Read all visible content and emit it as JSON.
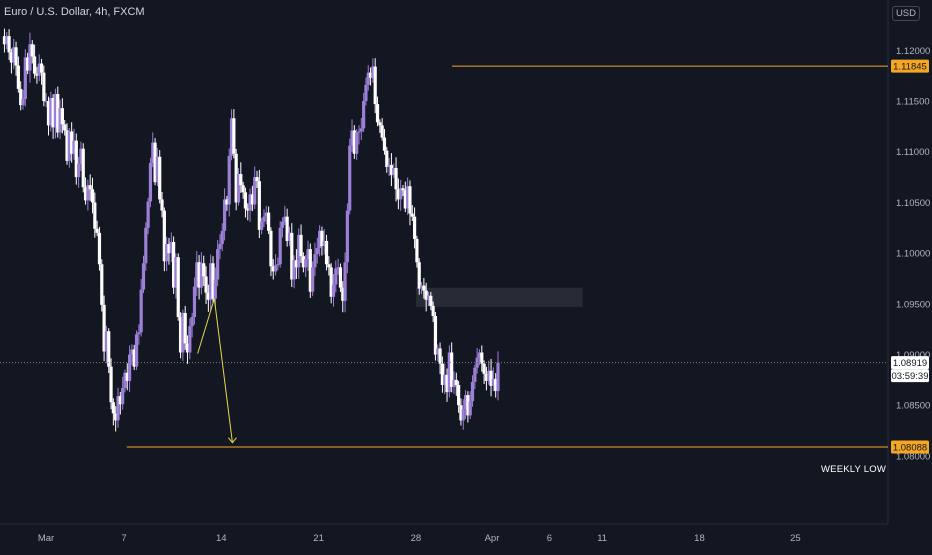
{
  "header": {
    "title": "Euro / U.S. Dollar, 4h, FXCM",
    "currency_button": "USD"
  },
  "annotations": {
    "weekly_low_label": "WEEKLY LOW"
  },
  "colors": {
    "background": "#131722",
    "bull_candle": "#9c7fd6",
    "bear_candle": "#ffffff",
    "level_line": "#f5a623",
    "projection_arrow": "#e6d94a",
    "zone": "#2a2e39",
    "price_line": "#787b86"
  },
  "chart_data": {
    "type": "candlestick",
    "title": "Euro / U.S. Dollar, 4h, FXCM",
    "x_ticks": [
      "Mar",
      "7",
      "14",
      "21",
      "28",
      "Apr",
      "6",
      "11",
      "18",
      "25"
    ],
    "y_ticks": [
      "1.12000",
      "1.11500",
      "1.11000",
      "1.10500",
      "1.10000",
      "1.09500",
      "1.09000",
      "1.08500",
      "1.08000"
    ],
    "ylim": [
      1.0795,
      1.1225
    ],
    "grid": false,
    "price_labels": [
      {
        "value": "1.11845",
        "kind": "level"
      },
      {
        "value": "1.08919",
        "kind": "last"
      },
      {
        "value": "03:59:39",
        "kind": "countdown"
      },
      {
        "value": "1.08088",
        "kind": "level"
      }
    ],
    "levels": [
      {
        "price": 1.11845,
        "from_day": 30.6
      },
      {
        "price": 1.08088,
        "from_day": 7.2,
        "label": "WEEKLY LOW"
      }
    ],
    "zone": {
      "from_day": 28.0,
      "to_day": 40.0,
      "low": 1.0947,
      "high": 1.0966
    },
    "projection": [
      [
        12.3,
        1.0901
      ],
      [
        13.5,
        1.0955
      ],
      [
        14.8,
        1.0813
      ]
    ],
    "close_series": {
      "start_day": -1.6,
      "step_days": 0.1667,
      "values": [
        1.1206,
        1.1214,
        1.1198,
        1.1188,
        1.1203,
        1.1185,
        1.1162,
        1.1146,
        1.1152,
        1.1193,
        1.118,
        1.1206,
        1.1194,
        1.1177,
        1.1175,
        1.1187,
        1.1178,
        1.115,
        1.115,
        1.1126,
        1.1153,
        1.1124,
        1.1157,
        1.1119,
        1.1143,
        1.1127,
        1.1121,
        1.1091,
        1.112,
        1.1098,
        1.1111,
        1.1075,
        1.1088,
        1.1103,
        1.1065,
        1.1052,
        1.1067,
        1.1063,
        1.105,
        1.1024,
        1.102,
        1.0989,
        1.0949,
        1.0903,
        1.0923,
        1.0888,
        1.0853,
        1.0842,
        1.0835,
        1.0859,
        1.0851,
        1.0867,
        1.0882,
        1.0874,
        1.09,
        1.0905,
        1.0888,
        1.092,
        1.0922,
        1.0964,
        1.099,
        1.1025,
        1.1051,
        1.1089,
        1.1109,
        1.107,
        1.1095,
        1.1053,
        1.1042,
        1.0992,
        1.1009,
        1.1,
        1.1011,
        1.0966,
        1.0996,
        1.0937,
        1.0902,
        1.0941,
        1.0911,
        1.0902,
        1.0928,
        1.0937,
        1.0967,
        1.0991,
        1.0966,
        1.099,
        1.0977,
        1.0961,
        1.0954,
        1.099,
        1.0955,
        1.0974,
        1.1004,
        1.1009,
        1.1022,
        1.1053,
        1.1048,
        1.1096,
        1.1133,
        1.1098,
        1.105,
        1.1078,
        1.1067,
        1.106,
        1.1044,
        1.1042,
        1.1058,
        1.1048,
        1.1075,
        1.1071,
        1.1023,
        1.1031,
        1.1036,
        1.104,
        1.1022,
        1.0987,
        1.0982,
        1.0988,
        1.0989,
        1.1025,
        1.1031,
        1.1036,
        1.1012,
        1.102,
        1.0974,
        1.0993,
        1.0986,
        1.1018,
        1.0997,
        1.0986,
        1.0994,
        1.1004,
        1.0962,
        1.0986,
        1.0999,
        1.1005,
        1.1022,
        1.1007,
        1.1012,
        1.0989,
        1.0986,
        1.0957,
        1.0969,
        1.0985,
        1.0986,
        1.0966,
        1.0953,
        1.0991,
        1.1042,
        1.1106,
        1.1121,
        1.1098,
        1.1119,
        1.112,
        1.1123,
        1.115,
        1.1166,
        1.1178,
        1.1173,
        1.1184,
        1.1147,
        1.1129,
        1.1126,
        1.1114,
        1.1101,
        1.1085,
        1.1087,
        1.1077,
        1.1084,
        1.1063,
        1.1053,
        1.1064,
        1.1062,
        1.1044,
        1.1066,
        1.1039,
        1.1036,
        1.1014,
        1.0991,
        1.0965,
        1.0968,
        1.0963,
        1.0954,
        1.0958,
        1.0948,
        1.0938,
        1.09,
        1.0906,
        1.0891,
        1.087,
        1.088,
        1.0863,
        1.0902,
        1.0868,
        1.0875,
        1.087,
        1.085,
        1.0835,
        1.0846,
        1.086,
        1.084,
        1.0854,
        1.0873,
        1.0887,
        1.0897,
        1.0902,
        1.0891,
        1.0881,
        1.0874,
        1.0884,
        1.0869,
        1.0876,
        1.0864,
        1.0892
      ]
    }
  }
}
